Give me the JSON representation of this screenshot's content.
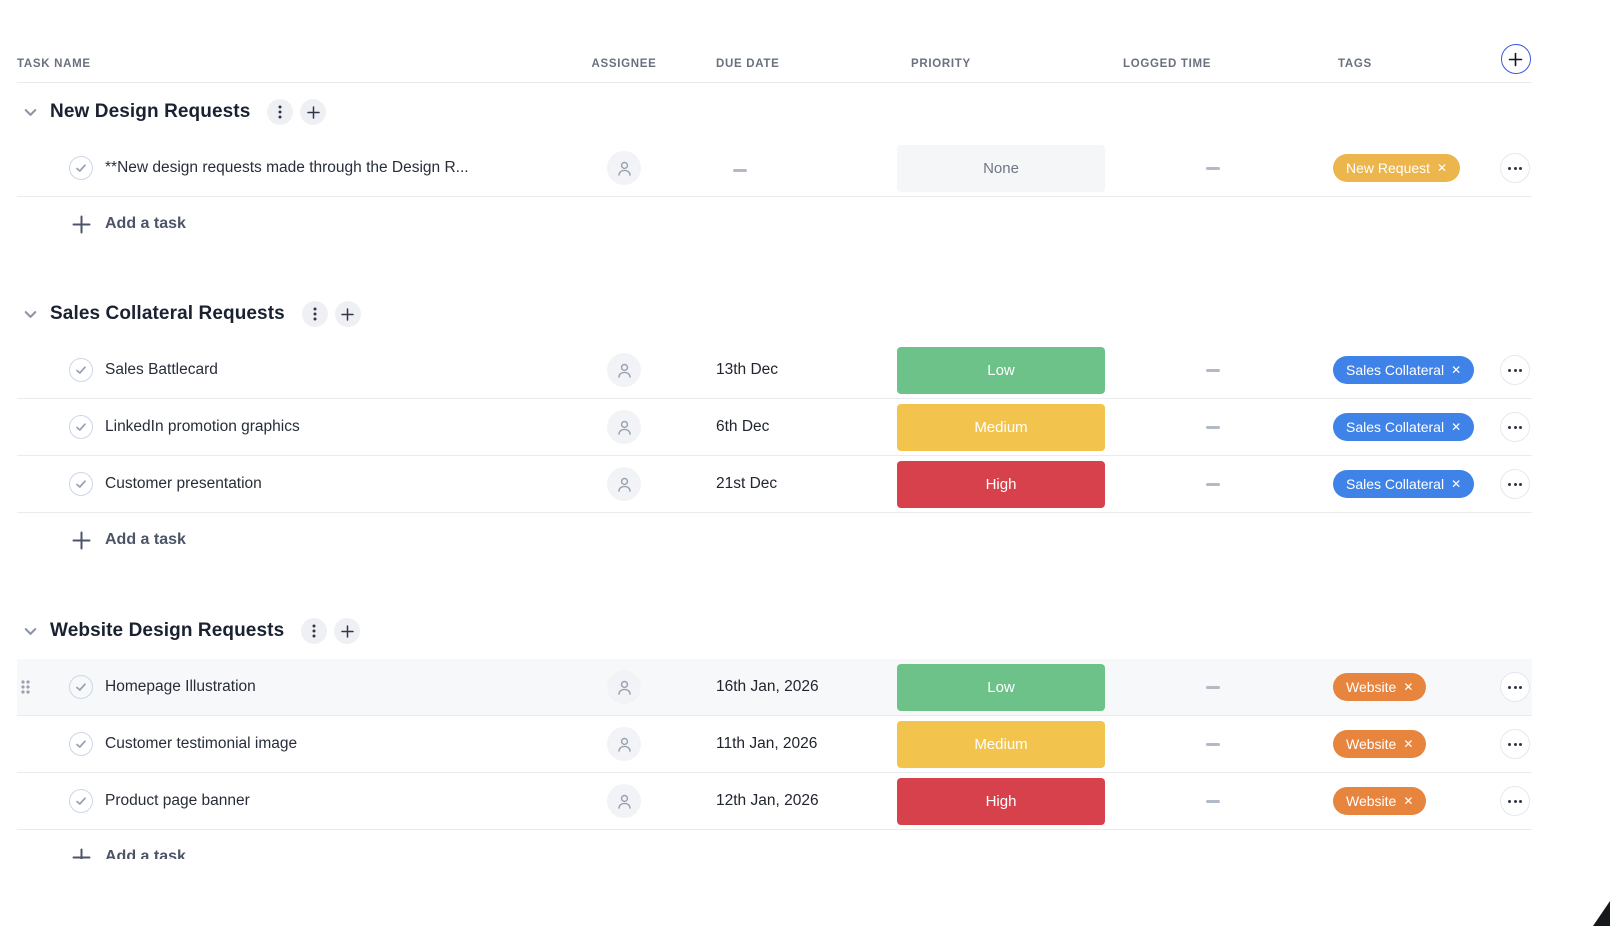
{
  "columns": {
    "task_name": "TASK NAME",
    "assignee": "ASSIGNEE",
    "due_date": "DUE DATE",
    "priority": "PRIORITY",
    "logged_time": "LOGGED TIME",
    "tags": "TAGS"
  },
  "colors": {
    "priority_low": "#6CC289",
    "priority_medium": "#F2C44E",
    "priority_high": "#D6414C",
    "priority_none_bg": "#F5F6F8",
    "tag_new_request": "#ECB64C",
    "tag_sales_collateral": "#3F83E8",
    "tag_website": "#E7843E"
  },
  "groups": [
    {
      "title": "New Design Requests",
      "add_task_label": "Add a task",
      "tasks": [
        {
          "name": "**New design requests made through the Design R...",
          "due": "–",
          "priority": "None",
          "priority_key": "none",
          "logged": "–",
          "tag": "New Request",
          "tag_key": "tag_new_request",
          "highlighted": false
        }
      ]
    },
    {
      "title": "Sales Collateral Requests",
      "add_task_label": "Add a task",
      "tasks": [
        {
          "name": "Sales Battlecard",
          "due": "13th Dec",
          "priority": "Low",
          "priority_key": "low",
          "logged": "–",
          "tag": "Sales Collateral",
          "tag_key": "tag_sales_collateral",
          "highlighted": false
        },
        {
          "name": "LinkedIn promotion graphics",
          "due": "6th Dec",
          "priority": "Medium",
          "priority_key": "medium",
          "logged": "–",
          "tag": "Sales Collateral",
          "tag_key": "tag_sales_collateral",
          "highlighted": false
        },
        {
          "name": "Customer presentation",
          "due": "21st Dec",
          "priority": "High",
          "priority_key": "high",
          "logged": "–",
          "tag": "Sales Collateral",
          "tag_key": "tag_sales_collateral",
          "highlighted": false
        }
      ]
    },
    {
      "title": "Website Design Requests",
      "add_task_label": "Add a task",
      "tasks": [
        {
          "name": "Homepage Illustration",
          "due": "16th Jan, 2026",
          "priority": "Low",
          "priority_key": "low",
          "logged": "–",
          "tag": "Website",
          "tag_key": "tag_website",
          "highlighted": true
        },
        {
          "name": "Customer testimonial image",
          "due": "11th Jan, 2026",
          "priority": "Medium",
          "priority_key": "medium",
          "logged": "–",
          "tag": "Website",
          "tag_key": "tag_website",
          "highlighted": false
        },
        {
          "name": "Product page banner",
          "due": "12th Jan, 2026",
          "priority": "High",
          "priority_key": "high",
          "logged": "–",
          "tag": "Website",
          "tag_key": "tag_website",
          "highlighted": false
        }
      ]
    }
  ]
}
